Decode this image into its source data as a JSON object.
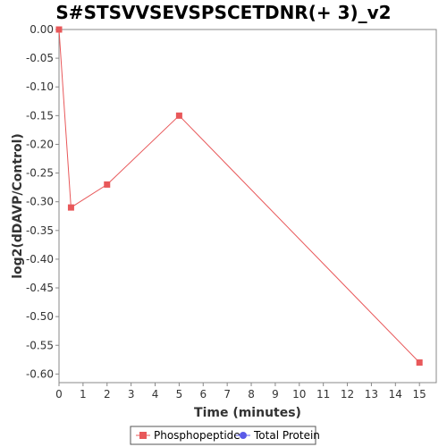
{
  "chart_data": {
    "type": "line",
    "title": "S#STSVVSEVSPSCETDNR(+ 3)_v2",
    "xlabel": "Time (minutes)",
    "ylabel": "log2(dDAVP/Control)",
    "xlim": [
      0,
      15.7
    ],
    "ylim": [
      -0.615,
      0.0
    ],
    "xticks": [
      0,
      1,
      2,
      3,
      4,
      5,
      6,
      7,
      8,
      9,
      10,
      11,
      12,
      13,
      14,
      15
    ],
    "yticks": [
      0.0,
      -0.05,
      -0.1,
      -0.15,
      -0.2,
      -0.25,
      -0.3,
      -0.35,
      -0.4,
      -0.45,
      -0.5,
      -0.55,
      -0.6
    ],
    "ytick_labels": [
      "0.00",
      "-0.05",
      "-0.10",
      "-0.15",
      "-0.20",
      "-0.25",
      "-0.30",
      "-0.35",
      "-0.40",
      "-0.45",
      "-0.50",
      "-0.55",
      "-0.60"
    ],
    "series": [
      {
        "name": "Phosphopeptide",
        "color": "#e8585a",
        "marker": "square",
        "x": [
          0,
          0.5,
          2,
          5,
          15
        ],
        "y": [
          0.0,
          -0.31,
          -0.27,
          -0.15,
          -0.58
        ]
      },
      {
        "name": "Total Protein",
        "color": "#5a5ae8",
        "marker": "circle",
        "x": [],
        "y": []
      }
    ],
    "grid": false,
    "legend_position": "bottom"
  }
}
